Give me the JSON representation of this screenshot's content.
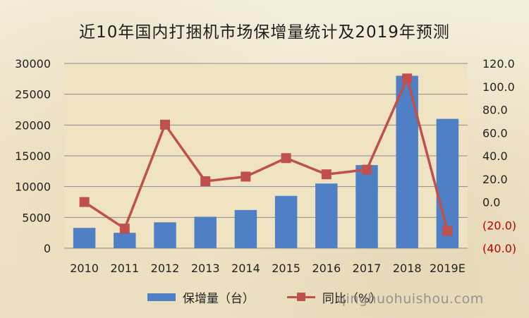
{
  "chart_data": {
    "type": "bar",
    "title": "近10年国内打捆机市场保增量统计及2019年预测",
    "categories": [
      "2010",
      "2011",
      "2012",
      "2013",
      "2014",
      "2015",
      "2016",
      "2017",
      "2018",
      "2019E"
    ],
    "series": [
      {
        "name": "保增量（台）",
        "type": "bar",
        "axis": "left",
        "color": "#4f7fc4",
        "values": [
          3300,
          2500,
          4200,
          5100,
          6200,
          8500,
          10500,
          13500,
          28000,
          21000
        ]
      },
      {
        "name": "同比（%）",
        "type": "line",
        "axis": "right",
        "color": "#c0504d",
        "values": [
          0.0,
          -23.0,
          67.0,
          18.0,
          22.0,
          38.0,
          24.0,
          28.0,
          107.0,
          -25.0
        ]
      }
    ],
    "y_left": {
      "ylim": [
        0,
        30000
      ],
      "ticks": [
        "0",
        "5000",
        "10000",
        "15000",
        "20000",
        "25000",
        "30000"
      ]
    },
    "y_right": {
      "ylim": [
        -40,
        120
      ],
      "ticks": [
        "(40.0)",
        "(20.0)",
        "0.0",
        "20.0",
        "40.0",
        "60.0",
        "80.0",
        "100.0",
        "120.0"
      ],
      "negative_color": "#c00000",
      "positive_color": "#222222"
    },
    "grid": true,
    "legend_position": "bottom",
    "plot_background": "#f0e3c1",
    "gridline_color": "#8c8c8c"
  },
  "watermark": "qinghuohuishou.com"
}
